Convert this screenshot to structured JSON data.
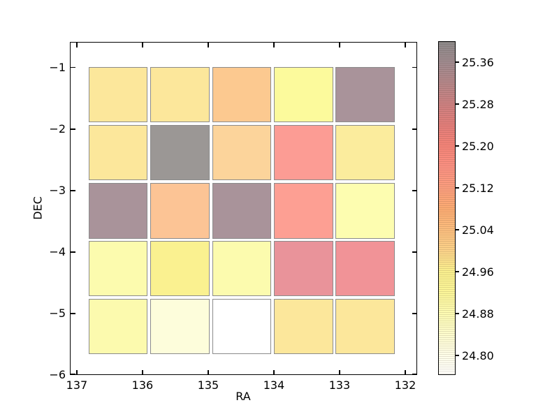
{
  "axes": {
    "xlabel": "RA",
    "ylabel": "DEC"
  },
  "chart_data": {
    "type": "heatmap",
    "title": "",
    "xlabel": "RA",
    "ylabel": "DEC",
    "xlim": [
      137.106,
      131.819
    ],
    "ylim": [
      -6.0,
      -0.583
    ],
    "x_axis_reversed": true,
    "grid": false,
    "x_tick_values": [
      137,
      136,
      135,
      134,
      133,
      132
    ],
    "x_tick_labels": [
      "137",
      "136",
      "135",
      "134",
      "133",
      "132"
    ],
    "y_tick_values": [
      -1,
      -2,
      -3,
      -4,
      -5,
      -6
    ],
    "y_tick_labels": [
      "−1",
      "−2",
      "−3",
      "−4",
      "−5",
      "−6"
    ],
    "cell_size_deg": 0.9,
    "x_centers": [
      136.37,
      135.43,
      134.49,
      133.55,
      132.61
    ],
    "y_centers": [
      -1.44,
      -2.38,
      -3.33,
      -4.27,
      -5.21
    ],
    "values": [
      [
        24.96,
        24.96,
        25.03,
        24.9,
        25.35
      ],
      [
        24.96,
        25.38,
        25.01,
        25.16,
        24.94
      ],
      [
        25.35,
        25.04,
        25.35,
        25.15,
        24.86
      ],
      [
        24.87,
        24.91,
        24.87,
        25.23,
        25.23
      ],
      [
        24.87,
        24.81,
        24.76,
        24.96,
        24.96
      ]
    ],
    "cell_colors": [
      [
        "#fce79b",
        "#fce79b",
        "#fcc990",
        "#fcfa9c",
        "#a9939a"
      ],
      [
        "#fce79b",
        "#9b9795",
        "#fcd49b",
        "#fc9c94",
        "#fbec9d"
      ],
      [
        "#a9939a",
        "#fcc495",
        "#a9939a",
        "#fd9f93",
        "#fdfdb0"
      ],
      [
        "#fcfbae",
        "#faf190",
        "#fcfbae",
        "#e9939a",
        "#f19397"
      ],
      [
        "#fcfaae",
        "#fdfddb",
        "#ffffff",
        "#fce79b",
        "#fce79b"
      ]
    ],
    "cell_border_color": "#8b8b8b",
    "colorbar": {
      "vmin": 24.763,
      "vmax": 25.4,
      "tick_values": [
        25.36,
        25.28,
        25.2,
        25.12,
        25.04,
        24.96,
        24.88,
        24.8
      ],
      "tick_labels": [
        "25.36",
        "25.28",
        "25.20",
        "25.12",
        "25.04",
        "24.96",
        "24.88",
        "24.80"
      ],
      "gradient_stops": [
        {
          "value": 25.4,
          "color": "#8d8a8a"
        },
        {
          "value": 25.36,
          "color": "#a08b8f"
        },
        {
          "value": 25.32,
          "color": "#b68789"
        },
        {
          "value": 25.28,
          "color": "#cd8181"
        },
        {
          "value": 25.24,
          "color": "#e37e7a"
        },
        {
          "value": 25.2,
          "color": "#f48478"
        },
        {
          "value": 25.16,
          "color": "#fb9182"
        },
        {
          "value": 25.12,
          "color": "#fb9e7e"
        },
        {
          "value": 25.08,
          "color": "#fbab72"
        },
        {
          "value": 25.04,
          "color": "#fbbd7e"
        },
        {
          "value": 25.0,
          "color": "#fbd289"
        },
        {
          "value": 24.96,
          "color": "#f9ef8e"
        },
        {
          "value": 24.92,
          "color": "#fbf598"
        },
        {
          "value": 24.88,
          "color": "#fcfab2"
        },
        {
          "value": 24.84,
          "color": "#fdfccd"
        },
        {
          "value": 24.8,
          "color": "#fefde8"
        },
        {
          "value": 24.763,
          "color": "#fffffc"
        }
      ]
    }
  }
}
